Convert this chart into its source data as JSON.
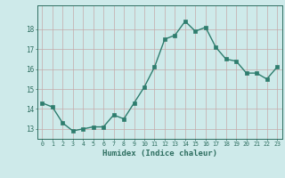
{
  "x": [
    0,
    1,
    2,
    3,
    4,
    5,
    6,
    7,
    8,
    9,
    10,
    11,
    12,
    13,
    14,
    15,
    16,
    17,
    18,
    19,
    20,
    21,
    22,
    23
  ],
  "y": [
    14.3,
    14.1,
    13.3,
    12.9,
    13.0,
    13.1,
    13.1,
    13.7,
    13.5,
    14.3,
    15.1,
    16.1,
    17.5,
    17.7,
    18.4,
    17.9,
    18.1,
    17.1,
    16.5,
    16.4,
    15.8,
    15.8,
    15.5,
    16.1
  ],
  "xlabel": "Humidex (Indice chaleur)",
  "line_color": "#2e7d6e",
  "marker_color": "#2e7d6e",
  "bg_color": "#ceeaea",
  "grid_color": "#c4aaaa",
  "text_color": "#2e6e60",
  "ylim": [
    12.5,
    19.2
  ],
  "yticks": [
    13,
    14,
    15,
    16,
    17,
    18
  ],
  "xticks": [
    0,
    1,
    2,
    3,
    4,
    5,
    6,
    7,
    8,
    9,
    10,
    11,
    12,
    13,
    14,
    15,
    16,
    17,
    18,
    19,
    20,
    21,
    22,
    23
  ]
}
